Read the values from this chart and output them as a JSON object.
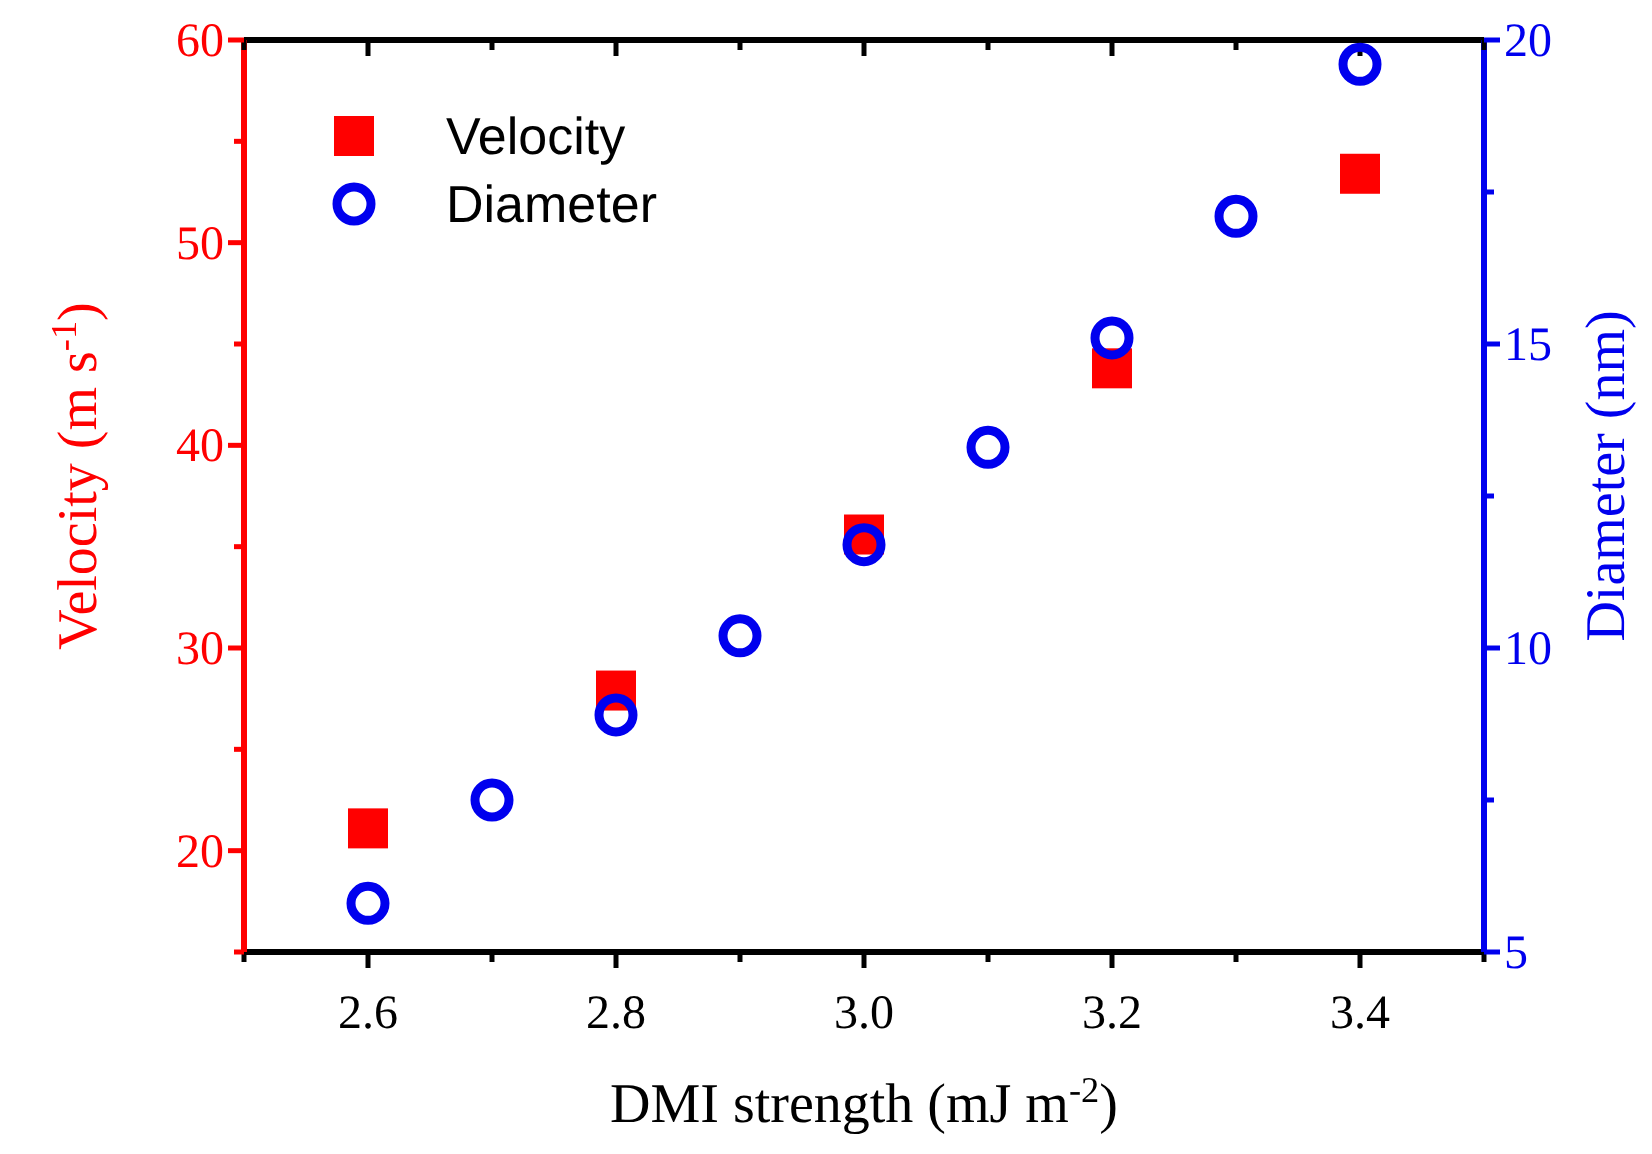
{
  "chart_data": {
    "type": "scatter",
    "xlabel": "DMI strength (mJ m$^{-2}$)",
    "ylabel": "Velocity (m s$^{-1}$)",
    "y2label": "Diameter (nm)",
    "xlim": [
      2.5,
      3.5
    ],
    "xticks": [
      {
        "value": 2.5,
        "label": null
      },
      2.6,
      {
        "value": 2.7,
        "label": null
      },
      2.8,
      {
        "value": 2.9,
        "label": null
      },
      {
        "value": 3.0,
        "label": "3.0"
      },
      {
        "value": 3.1,
        "label": null
      },
      3.2,
      {
        "value": 3.3,
        "label": null
      },
      3.4,
      {
        "value": 3.5,
        "label": null
      }
    ],
    "ylim": [
      15,
      60
    ],
    "yticks": [
      {
        "value": 15,
        "label": null
      },
      20,
      {
        "value": 25,
        "label": null
      },
      30,
      {
        "value": 35,
        "label": null
      },
      40,
      {
        "value": 45,
        "label": null
      },
      50,
      {
        "value": 55,
        "label": null
      },
      60
    ],
    "y2lim": [
      5,
      20
    ],
    "y2ticks": [
      5,
      {
        "value": 7.5,
        "label": null
      },
      10,
      {
        "value": 12.5,
        "label": null
      },
      15,
      {
        "value": 17.5,
        "label": null
      },
      20
    ],
    "legend": "top left",
    "grid": false,
    "series": [
      {
        "name": "Velocity",
        "color": "#ff0000",
        "marker": "square",
        "x": [
          2.6,
          2.8,
          3.0,
          3.2,
          3.4
        ],
        "values": [
          21.1,
          27.9,
          35.6,
          43.8,
          53.4
        ]
      },
      {
        "name": "Diameter",
        "color": "#0000ee",
        "marker": "circle",
        "axis": "y2",
        "x": [
          2.6,
          2.7,
          2.8,
          2.9,
          3.0,
          3.1,
          3.2,
          3.3,
          3.4
        ],
        "values": [
          5.8,
          7.5,
          8.9,
          10.2,
          11.7,
          13.3,
          15.1,
          17.1,
          19.6
        ]
      }
    ]
  }
}
